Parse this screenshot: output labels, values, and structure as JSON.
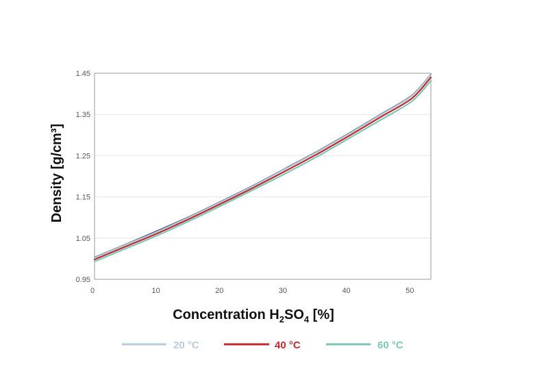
{
  "chart_data": {
    "type": "line",
    "title": "",
    "xlabel": {
      "main": "Concentration H",
      "sub1": "2",
      "mid": "SO",
      "sub2": "4",
      "tail": " [%]"
    },
    "ylabel": "Density [g/cm³]",
    "xlim": [
      0,
      53
    ],
    "ylim": [
      0.95,
      1.45
    ],
    "x_ticks": [
      0,
      10,
      20,
      30,
      40,
      50
    ],
    "x_tick_labels": [
      "0",
      "10",
      "20",
      "30",
      "40",
      "50"
    ],
    "y_ticks": [
      0.95,
      1.05,
      1.15,
      1.25,
      1.35,
      1.45
    ],
    "y_tick_labels": [
      "0.95",
      "1.05",
      "1.15",
      "1.25",
      "1.35",
      "1.45"
    ],
    "grid": "horizontal",
    "legend_position": "bottom",
    "x": [
      0,
      5,
      10,
      15,
      20,
      25,
      30,
      35,
      40,
      45,
      50,
      53
    ],
    "series": [
      {
        "name": "Navy",
        "label": "",
        "color": "#2c3e5e",
        "legend": false,
        "values": [
          1.003,
          1.035,
          1.068,
          1.102,
          1.139,
          1.177,
          1.218,
          1.259,
          1.303,
          1.349,
          1.396,
          1.447
        ]
      },
      {
        "name": "20 °C",
        "label": "20 °C",
        "color": "#b7cdd9",
        "legend": true,
        "values": [
          1.002,
          1.034,
          1.066,
          1.101,
          1.138,
          1.176,
          1.217,
          1.258,
          1.302,
          1.348,
          1.395,
          1.446
        ]
      },
      {
        "name": "40 °C",
        "label": "40 °C",
        "color": "#c0282d",
        "legend": true,
        "values": [
          0.998,
          1.03,
          1.062,
          1.097,
          1.134,
          1.172,
          1.212,
          1.253,
          1.297,
          1.343,
          1.389,
          1.44
        ]
      },
      {
        "name": "60 °C",
        "label": "60 °C",
        "color": "#7cc6b7",
        "legend": true,
        "values": [
          0.993,
          1.025,
          1.057,
          1.092,
          1.129,
          1.167,
          1.206,
          1.247,
          1.291,
          1.336,
          1.382,
          1.432
        ]
      }
    ]
  }
}
